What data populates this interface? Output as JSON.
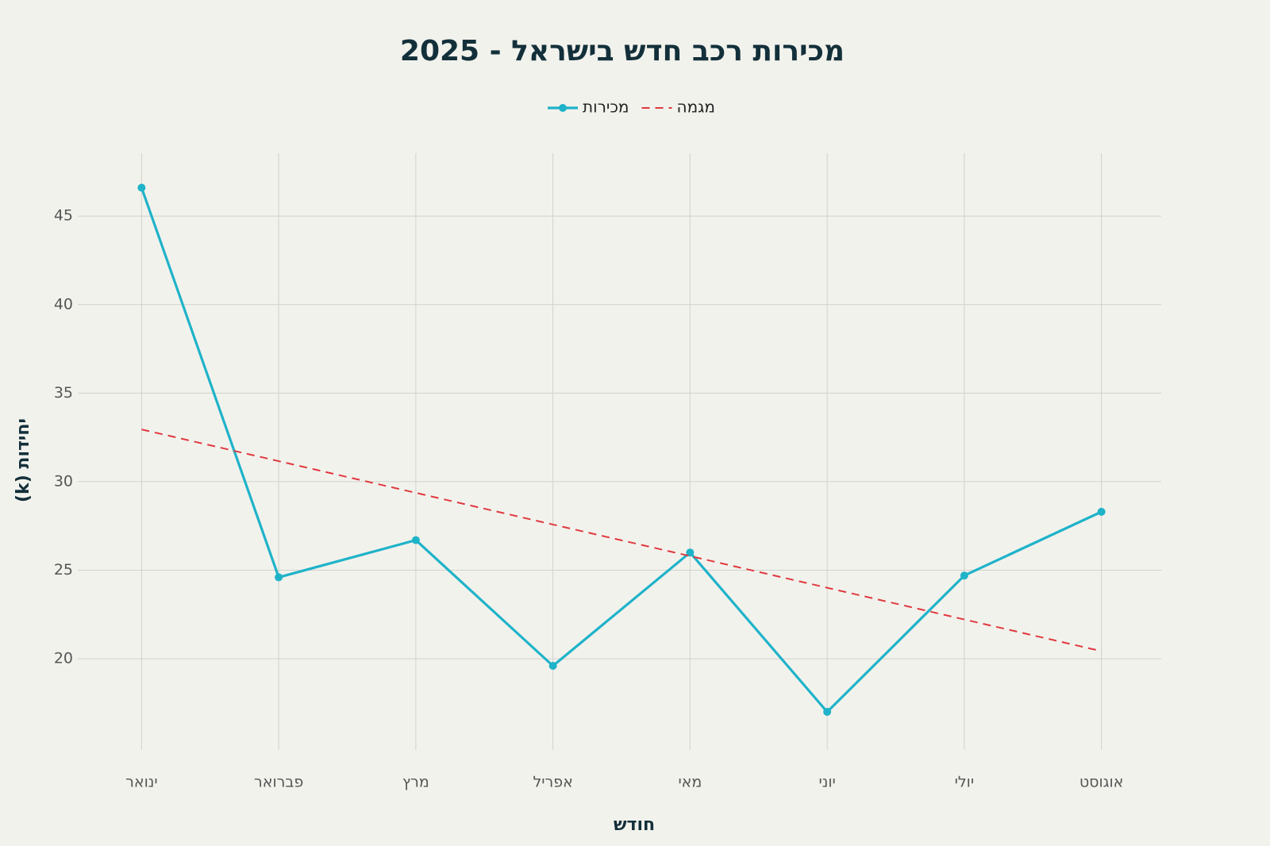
{
  "chart_data": {
    "type": "line",
    "title": "מכירות רכב חדש בישראל - 2025",
    "x_label": "חודש",
    "y_label": "יחידות (k)",
    "categories": [
      "ינואר",
      "פברואר",
      "מרץ",
      "אפריל",
      "מאי",
      "יוני",
      "יולי",
      "אוגוסט"
    ],
    "series": [
      {
        "name": "מכירות",
        "color": "#1fb3c9",
        "style": "solid",
        "markers": true,
        "values": [
          46.6,
          24.6,
          26.7,
          19.6,
          26.0,
          17.0,
          24.7,
          28.3
        ]
      },
      {
        "name": "מגמה",
        "color": "#e0393e",
        "style": "dashed",
        "markers": false,
        "values": [
          32.95,
          31.16,
          29.37,
          27.58,
          25.8,
          24.01,
          22.22,
          20.43
        ]
      }
    ],
    "ylim": [
      14.85,
      48.55
    ],
    "yticks": [
      20,
      25,
      30,
      35,
      40,
      45
    ],
    "grid": true,
    "legend": "top"
  }
}
